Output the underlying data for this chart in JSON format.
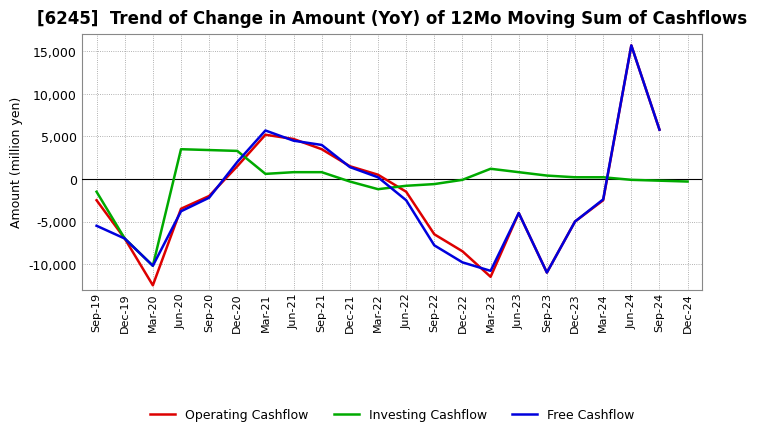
{
  "title": "[6245]  Trend of Change in Amount (YoY) of 12Mo Moving Sum of Cashflows",
  "ylabel": "Amount (million yen)",
  "x_labels": [
    "Sep-19",
    "Dec-19",
    "Mar-20",
    "Jun-20",
    "Sep-20",
    "Dec-20",
    "Mar-21",
    "Jun-21",
    "Sep-21",
    "Dec-21",
    "Mar-22",
    "Jun-22",
    "Sep-22",
    "Dec-22",
    "Mar-23",
    "Jun-23",
    "Sep-23",
    "Dec-23",
    "Mar-24",
    "Jun-24",
    "Sep-24",
    "Dec-24"
  ],
  "operating": [
    -2500,
    -7000,
    -12500,
    -3500,
    -2000,
    1500,
    5200,
    4700,
    3500,
    1500,
    500,
    -1500,
    -6500,
    -8500,
    -11500,
    -4000,
    -11000,
    -5000,
    -2500,
    15700,
    5800,
    null
  ],
  "investing": [
    -1500,
    -7000,
    -10200,
    3500,
    3400,
    3300,
    600,
    800,
    800,
    -300,
    -1200,
    -800,
    -600,
    -100,
    1200,
    800,
    400,
    200,
    200,
    -100,
    -200,
    -300
  ],
  "free": [
    -5500,
    -7000,
    -10200,
    -3800,
    -2200,
    2000,
    5700,
    4500,
    4000,
    1400,
    200,
    -2500,
    -7800,
    -9800,
    -10800,
    -4000,
    -11000,
    -5000,
    -2400,
    15700,
    5800,
    null
  ],
  "ylim": [
    -13000,
    17000
  ],
  "yticks": [
    -10000,
    -5000,
    0,
    5000,
    10000,
    15000
  ],
  "operating_color": "#dd0000",
  "investing_color": "#00aa00",
  "free_color": "#0000dd",
  "background_color": "#ffffff",
  "grid_color": "#999999",
  "title_fontsize": 12,
  "axis_fontsize": 9,
  "tick_fontsize": 8,
  "legend_fontsize": 9
}
